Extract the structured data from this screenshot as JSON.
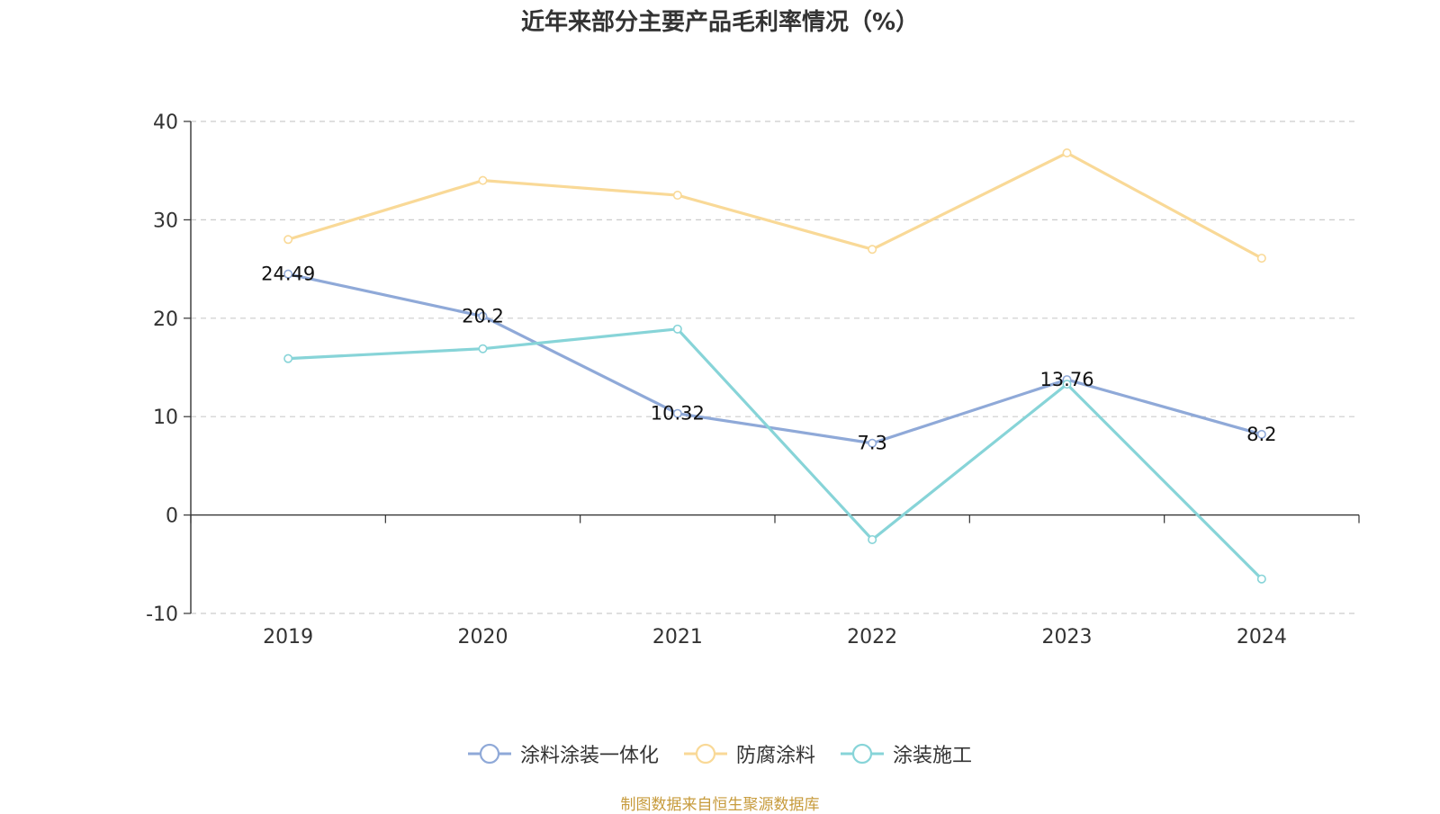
{
  "chart_data": {
    "type": "line",
    "title": "近年来部分主要产品毛利率情况（%）",
    "categories": [
      "2019",
      "2020",
      "2021",
      "2022",
      "2023",
      "2024"
    ],
    "ylim": [
      -10,
      40
    ],
    "yticks": [
      "40",
      "30",
      "20",
      "10",
      "0",
      "-10"
    ],
    "grid": "horizontal-dashed",
    "legend_position": "bottom",
    "series": [
      {
        "name": "涂料涂装一体化",
        "color": "#8fa9d8",
        "values": [
          24.49,
          20.2,
          10.32,
          7.3,
          13.76,
          8.2
        ],
        "labels": [
          "24.49",
          "20.2",
          "10.32",
          "7.3",
          "13.76",
          "8.2"
        ]
      },
      {
        "name": "防腐涂料",
        "color": "#f9d997",
        "values": [
          28.0,
          34.0,
          32.5,
          27.0,
          36.8,
          26.1
        ]
      },
      {
        "name": "涂装施工",
        "color": "#87d4d8",
        "values": [
          15.9,
          16.9,
          18.9,
          -2.5,
          13.3,
          -6.5
        ]
      }
    ]
  },
  "source": {
    "text": "制图数据来自恒生聚源数据库",
    "color": "#c79b3c"
  }
}
